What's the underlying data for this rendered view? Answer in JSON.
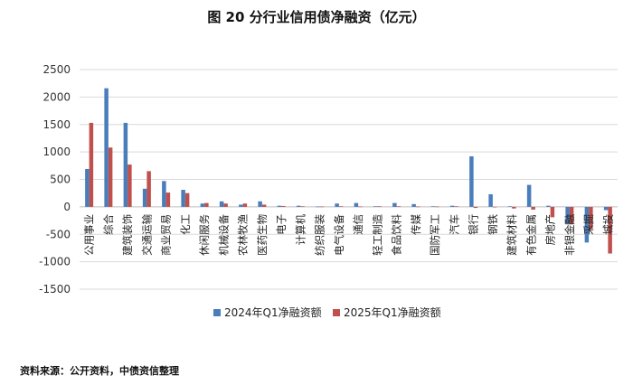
{
  "title": "图 20  分行业信用债净融资（亿元）",
  "source": "资料来源：公开资料，中债资信整理",
  "colors": {
    "s2024": "#4a7ebb",
    "s2025": "#c0504d",
    "grid": "#d9d9d9",
    "axis": "#bfbfbf"
  },
  "chart_data": {
    "type": "bar",
    "title": "图 20  分行业信用债净融资（亿元）",
    "ylim": [
      -1500,
      2500
    ],
    "yticks": [
      2500,
      2000,
      1500,
      1000,
      500,
      0,
      -500,
      -1000,
      -1500
    ],
    "grid": true,
    "legend_position": "bottom",
    "categories": [
      "公用事业",
      "综合",
      "建筑装饰",
      "交通运输",
      "商业贸易",
      "化工",
      "休闲服务",
      "机械设备",
      "农林牧渔",
      "医药生物",
      "电子",
      "计算机",
      "纺织服装",
      "电气设备",
      "通信",
      "轻工制造",
      "食品饮料",
      "传媒",
      "国防军工",
      "汽车",
      "银行",
      "钢铁",
      "建筑材料",
      "有色金属",
      "房地产",
      "非银金融",
      "采掘",
      "城投"
    ],
    "series": [
      {
        "name": "2024年Q1净融资额",
        "values": [
          690,
          2160,
          1530,
          330,
          470,
          310,
          60,
          100,
          40,
          100,
          20,
          20,
          5,
          60,
          70,
          10,
          70,
          50,
          10,
          20,
          920,
          230,
          10,
          400,
          20,
          -320,
          -650,
          -60
        ]
      },
      {
        "name": "2025年Q1净融资额",
        "values": [
          1530,
          1080,
          770,
          650,
          260,
          250,
          70,
          60,
          60,
          40,
          15,
          10,
          5,
          10,
          5,
          10,
          10,
          5,
          5,
          10,
          -20,
          -10,
          -30,
          -50,
          -190,
          -320,
          -400,
          -850
        ]
      }
    ]
  }
}
